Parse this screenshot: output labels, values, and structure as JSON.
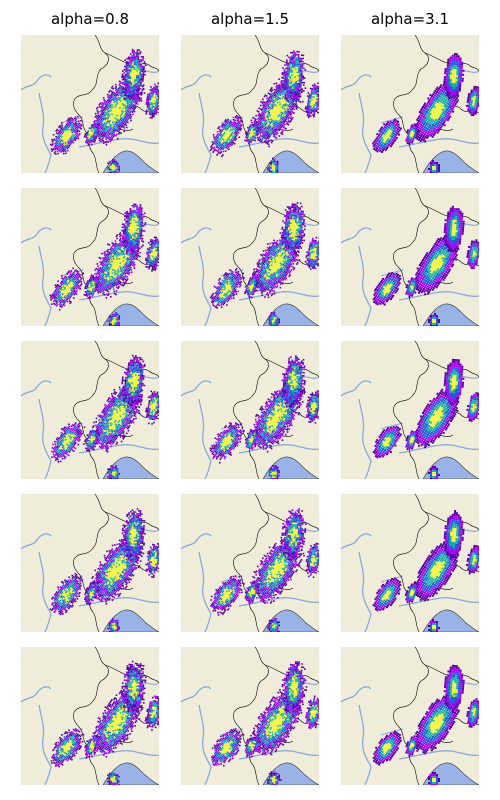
{
  "figure": {
    "columns": [
      {
        "title": "alpha=0.8"
      },
      {
        "title": "alpha=1.5"
      },
      {
        "title": "alpha=3.1"
      }
    ],
    "rows": 5,
    "colors": {
      "land": "#efedda",
      "water": "#99b3e6",
      "river": "#89a9d8",
      "border": "#000000",
      "precip_low": "#5b00a0",
      "precip_mid1": "#b000ff",
      "precip_mid2": "#1f5fd8",
      "precip_mid3": "#1bb3a8",
      "precip_high": "#f4f63a"
    },
    "colormap": "gist_ncar-like precipitation",
    "icons": {
      "basemap": "map-panel"
    }
  }
}
